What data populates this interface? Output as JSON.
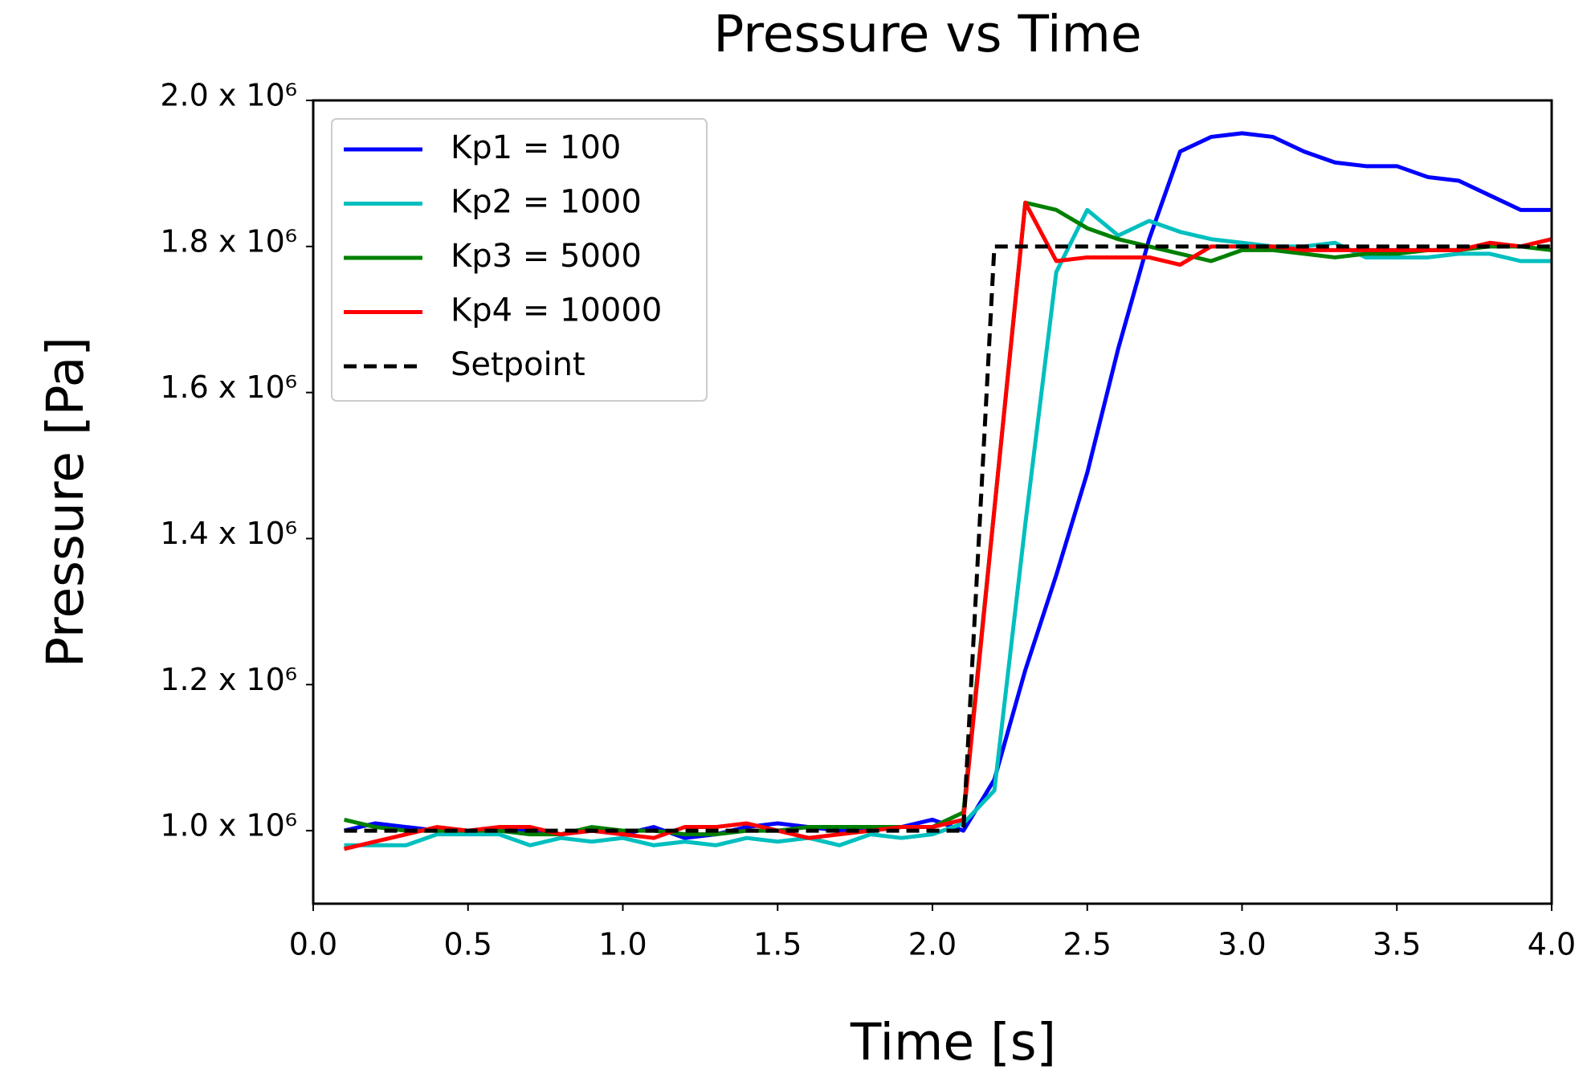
{
  "chart_data": {
    "type": "line",
    "title": "Pressure vs Time",
    "x_label": "Time [s]",
    "y_label": "Pressure [Pa]",
    "x": [
      0.1,
      0.2,
      0.3,
      0.4,
      0.5,
      0.6,
      0.7,
      0.8,
      0.9,
      1.0,
      1.1,
      1.2,
      1.3,
      1.4,
      1.5,
      1.6,
      1.7,
      1.8,
      1.9,
      2.0,
      2.1,
      2.2,
      2.3,
      2.4,
      2.5,
      2.6,
      2.7,
      2.8,
      2.9,
      3.0,
      3.1,
      3.2,
      3.3,
      3.4,
      3.5,
      3.6,
      3.7,
      3.8,
      3.9,
      4.0
    ],
    "series": [
      {
        "name": "Kp1 = 100",
        "color": "#0000ff",
        "dash": false,
        "values": [
          1000000,
          1010000,
          1005000,
          1000000,
          1000000,
          1000000,
          1000000,
          995000,
          1000000,
          995000,
          1005000,
          990000,
          995000,
          1005000,
          1010000,
          1005000,
          1000000,
          1000000,
          1005000,
          1015000,
          1000000,
          1070000,
          1220000,
          1350000,
          1490000,
          1660000,
          1810000,
          1930000,
          1950000,
          1955000,
          1950000,
          1930000,
          1915000,
          1910000,
          1910000,
          1895000,
          1890000,
          1870000,
          1850000,
          1850000
        ]
      },
      {
        "name": "Kp2 = 1000",
        "color": "#00bfbf",
        "dash": false,
        "values": [
          980000,
          980000,
          980000,
          995000,
          995000,
          995000,
          980000,
          990000,
          985000,
          990000,
          980000,
          985000,
          980000,
          990000,
          985000,
          990000,
          980000,
          995000,
          990000,
          995000,
          1010000,
          1055000,
          1420000,
          1765000,
          1850000,
          1815000,
          1835000,
          1820000,
          1810000,
          1805000,
          1800000,
          1800000,
          1805000,
          1785000,
          1785000,
          1785000,
          1790000,
          1790000,
          1780000,
          1780000
        ]
      },
      {
        "name": "Kp3 = 5000",
        "color": "#008000",
        "dash": false,
        "values": [
          1015000,
          1005000,
          1000000,
          1000000,
          1000000,
          1000000,
          995000,
          995000,
          1005000,
          1000000,
          1000000,
          995000,
          995000,
          1000000,
          1000000,
          1005000,
          1005000,
          1005000,
          1005000,
          1005000,
          1025000,
          1440000,
          1860000,
          1850000,
          1825000,
          1810000,
          1800000,
          1790000,
          1780000,
          1795000,
          1795000,
          1790000,
          1785000,
          1790000,
          1790000,
          1795000,
          1795000,
          1800000,
          1800000,
          1795000
        ]
      },
      {
        "name": "Kp4 = 10000",
        "color": "#ff0000",
        "dash": false,
        "values": [
          975000,
          985000,
          995000,
          1005000,
          1000000,
          1005000,
          1005000,
          995000,
          1000000,
          995000,
          990000,
          1005000,
          1005000,
          1010000,
          1000000,
          990000,
          995000,
          1000000,
          1005000,
          1005000,
          1015000,
          1440000,
          1860000,
          1780000,
          1785000,
          1785000,
          1785000,
          1775000,
          1800000,
          1800000,
          1800000,
          1795000,
          1795000,
          1795000,
          1795000,
          1795000,
          1795000,
          1805000,
          1800000,
          1810000
        ]
      },
      {
        "name": "Setpoint",
        "color": "#000000",
        "dash": true,
        "values": [
          1000000,
          1000000,
          1000000,
          1000000,
          1000000,
          1000000,
          1000000,
          1000000,
          1000000,
          1000000,
          1000000,
          1000000,
          1000000,
          1000000,
          1000000,
          1000000,
          1000000,
          1000000,
          1000000,
          1000000,
          1000000,
          1800000,
          1800000,
          1800000,
          1800000,
          1800000,
          1800000,
          1800000,
          1800000,
          1800000,
          1800000,
          1800000,
          1800000,
          1800000,
          1800000,
          1800000,
          1800000,
          1800000,
          1800000,
          1800000
        ]
      }
    ],
    "xlim": [
      0,
      4
    ],
    "ylim": [
      900000,
      2000000
    ],
    "xticks": [
      {
        "value": 0,
        "label": "0.0"
      },
      0.5,
      {
        "value": 1,
        "label": "1.0"
      },
      1.5,
      {
        "value": 2,
        "label": "2.0"
      },
      2.5,
      {
        "value": 3,
        "label": "3.0"
      },
      3.5,
      {
        "value": 4,
        "label": "4.0"
      }
    ],
    "yticks": [
      {
        "value": 1000000,
        "label": "1.0 x 10⁶"
      },
      {
        "value": 1200000,
        "label": "1.2 x 10⁶"
      },
      {
        "value": 1400000,
        "label": "1.4 x 10⁶"
      },
      {
        "value": 1600000,
        "label": "1.6 x 10⁶"
      },
      {
        "value": 1800000,
        "label": "1.8 x 10⁶"
      },
      {
        "value": 2000000,
        "label": "2.0 x 10⁶"
      }
    ],
    "grid": false,
    "legend": "upper-left"
  }
}
